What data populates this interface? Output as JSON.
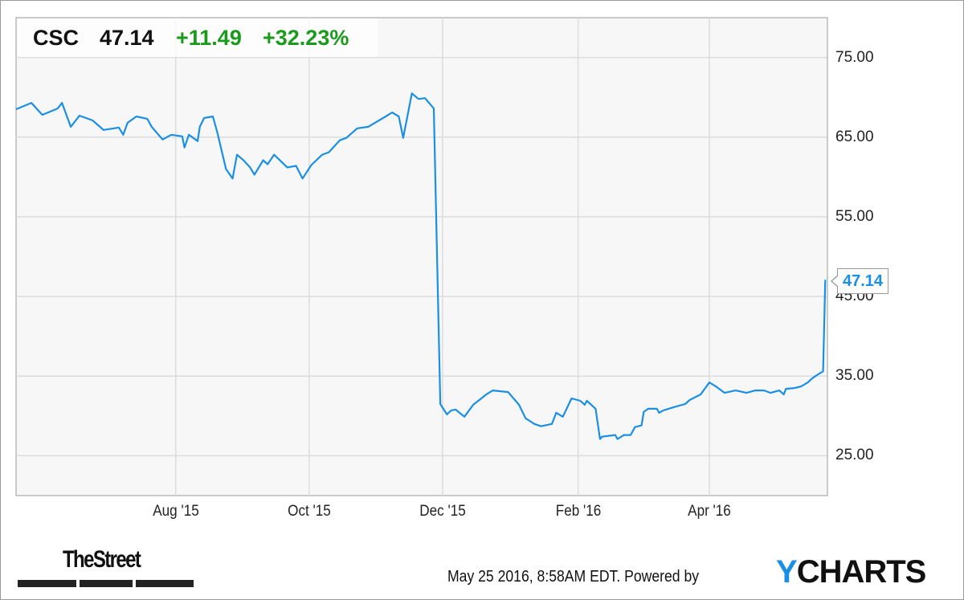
{
  "header": {
    "ticker": "CSC",
    "price": "47.14",
    "change": "+11.49",
    "change_pct": "+32.23%"
  },
  "colors": {
    "line": "#1a8fe3",
    "positive": "#1a9a1a",
    "plot_bg": "#f7f7f7",
    "grid": "#dcdcdc"
  },
  "chart_data": {
    "type": "line",
    "title": "",
    "xlabel": "",
    "ylabel": "",
    "xlim": [
      "2015-05-20",
      "2016-05-25"
    ],
    "ylim": [
      20,
      80
    ],
    "grid": true,
    "y_ticks": [
      75,
      65,
      55,
      45,
      35,
      25
    ],
    "y_tick_labels": [
      "75.00",
      "65.00",
      "55.00",
      "45.00",
      "35.00",
      "25.00"
    ],
    "x_ticks": [
      "2015-08-01",
      "2015-10-01",
      "2015-12-01",
      "2016-02-01",
      "2016-04-01"
    ],
    "x_tick_labels": [
      "Aug '15",
      "Oct '15",
      "Dec '15",
      "Feb '16",
      "Apr '16"
    ],
    "last_value_label": "47.14",
    "series": [
      {
        "points": [
          [
            "2015-05-20",
            68.5
          ],
          [
            "2015-05-27",
            69.3
          ],
          [
            "2015-06-01",
            67.8
          ],
          [
            "2015-06-08",
            68.6
          ],
          [
            "2015-06-10",
            69.3
          ],
          [
            "2015-06-14",
            66.3
          ],
          [
            "2015-06-18",
            67.7
          ],
          [
            "2015-06-24",
            67.1
          ],
          [
            "2015-06-29",
            65.9
          ],
          [
            "2015-07-06",
            66.2
          ],
          [
            "2015-07-08",
            65.3
          ],
          [
            "2015-07-10",
            66.8
          ],
          [
            "2015-07-14",
            67.6
          ],
          [
            "2015-07-19",
            67.3
          ],
          [
            "2015-07-21",
            66.3
          ],
          [
            "2015-07-26",
            64.7
          ],
          [
            "2015-07-30",
            65.3
          ],
          [
            "2015-08-04",
            65.1
          ],
          [
            "2015-08-05",
            63.7
          ],
          [
            "2015-08-07",
            65.3
          ],
          [
            "2015-08-11",
            64.5
          ],
          [
            "2015-08-12",
            66.3
          ],
          [
            "2015-08-14",
            67.4
          ],
          [
            "2015-08-18",
            67.6
          ],
          [
            "2015-08-20",
            65.6
          ],
          [
            "2015-08-24",
            61.0
          ],
          [
            "2015-08-27",
            59.8
          ],
          [
            "2015-08-29",
            62.8
          ],
          [
            "2015-09-01",
            62.1
          ],
          [
            "2015-09-04",
            61.2
          ],
          [
            "2015-09-06",
            60.3
          ],
          [
            "2015-09-10",
            62.1
          ],
          [
            "2015-09-12",
            61.6
          ],
          [
            "2015-09-15",
            62.8
          ],
          [
            "2015-09-21",
            61.2
          ],
          [
            "2015-09-25",
            61.4
          ],
          [
            "2015-09-28",
            59.8
          ],
          [
            "2015-10-02",
            61.5
          ],
          [
            "2015-10-07",
            62.8
          ],
          [
            "2015-10-10",
            63.1
          ],
          [
            "2015-10-15",
            64.6
          ],
          [
            "2015-10-18",
            64.9
          ],
          [
            "2015-10-23",
            66.1
          ],
          [
            "2015-10-28",
            66.3
          ],
          [
            "2015-11-05",
            67.6
          ],
          [
            "2015-11-08",
            68.1
          ],
          [
            "2015-11-11",
            67.6
          ],
          [
            "2015-11-13",
            64.9
          ],
          [
            "2015-11-17",
            70.5
          ],
          [
            "2015-11-20",
            69.8
          ],
          [
            "2015-11-23",
            69.9
          ],
          [
            "2015-11-27",
            68.6
          ],
          [
            "2015-11-30",
            31.5
          ],
          [
            "2015-12-03",
            30.2
          ],
          [
            "2015-12-05",
            30.7
          ],
          [
            "2015-12-07",
            30.8
          ],
          [
            "2015-12-11",
            29.9
          ],
          [
            "2015-12-15",
            31.4
          ],
          [
            "2015-12-21",
            32.7
          ],
          [
            "2015-12-24",
            33.2
          ],
          [
            "2015-12-31",
            33.0
          ],
          [
            "2016-01-05",
            31.4
          ],
          [
            "2016-01-08",
            29.7
          ],
          [
            "2016-01-12",
            29.0
          ],
          [
            "2016-01-15",
            28.7
          ],
          [
            "2016-01-20",
            29.0
          ],
          [
            "2016-01-22",
            30.4
          ],
          [
            "2016-01-25",
            29.9
          ],
          [
            "2016-01-29",
            32.2
          ],
          [
            "2016-02-02",
            31.9
          ],
          [
            "2016-02-04",
            31.4
          ],
          [
            "2016-02-05",
            31.9
          ],
          [
            "2016-02-09",
            30.9
          ],
          [
            "2016-02-11",
            27.1
          ],
          [
            "2016-02-12",
            27.4
          ],
          [
            "2016-02-18",
            27.6
          ],
          [
            "2016-02-19",
            27.1
          ],
          [
            "2016-02-22",
            27.6
          ],
          [
            "2016-02-25",
            27.6
          ],
          [
            "2016-02-27",
            28.6
          ],
          [
            "2016-03-01",
            28.8
          ],
          [
            "2016-03-02",
            30.5
          ],
          [
            "2016-03-04",
            30.9
          ],
          [
            "2016-03-08",
            30.9
          ],
          [
            "2016-03-09",
            30.4
          ],
          [
            "2016-03-11",
            30.7
          ],
          [
            "2016-03-17",
            31.2
          ],
          [
            "2016-03-21",
            31.5
          ],
          [
            "2016-03-23",
            32.0
          ],
          [
            "2016-03-28",
            32.7
          ],
          [
            "2016-04-01",
            34.2
          ],
          [
            "2016-04-04",
            33.7
          ],
          [
            "2016-04-08",
            32.9
          ],
          [
            "2016-04-13",
            33.2
          ],
          [
            "2016-04-18",
            32.9
          ],
          [
            "2016-04-22",
            33.2
          ],
          [
            "2016-04-26",
            33.2
          ],
          [
            "2016-04-29",
            32.9
          ],
          [
            "2016-05-03",
            33.2
          ],
          [
            "2016-05-05",
            32.7
          ],
          [
            "2016-05-06",
            33.4
          ],
          [
            "2016-05-10",
            33.5
          ],
          [
            "2016-05-13",
            33.7
          ],
          [
            "2016-05-16",
            34.2
          ],
          [
            "2016-05-18",
            34.7
          ],
          [
            "2016-05-20",
            35.1
          ],
          [
            "2016-05-23",
            35.6
          ],
          [
            "2016-05-24",
            47.1
          ]
        ]
      }
    ]
  },
  "footer": {
    "brand_left": "TheStreet",
    "timestamp": "May 25 2016, 8:58AM EDT. Powered by",
    "brand_right_y": "Y",
    "brand_right_rest": "CHARTS"
  }
}
